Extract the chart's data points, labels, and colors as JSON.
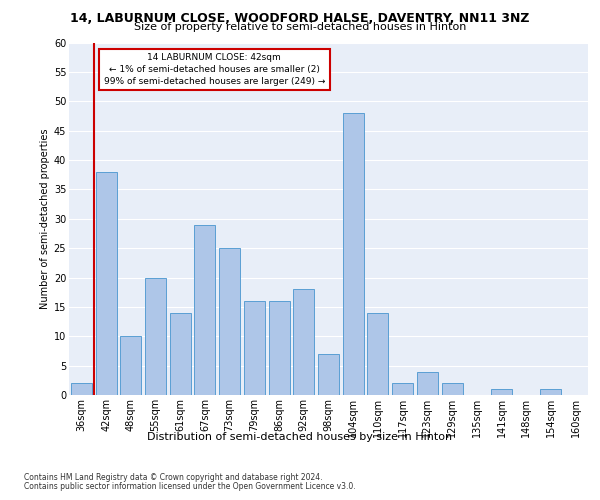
{
  "title": "14, LABURNUM CLOSE, WOODFORD HALSE, DAVENTRY, NN11 3NZ",
  "subtitle": "Size of property relative to semi-detached houses in Hinton",
  "xlabel_bottom": "Distribution of semi-detached houses by size in Hinton",
  "ylabel": "Number of semi-detached properties",
  "categories": [
    "36sqm",
    "42sqm",
    "48sqm",
    "55sqm",
    "61sqm",
    "67sqm",
    "73sqm",
    "79sqm",
    "86sqm",
    "92sqm",
    "98sqm",
    "104sqm",
    "110sqm",
    "117sqm",
    "123sqm",
    "129sqm",
    "135sqm",
    "141sqm",
    "148sqm",
    "154sqm",
    "160sqm"
  ],
  "values": [
    2,
    38,
    10,
    20,
    14,
    29,
    25,
    16,
    16,
    18,
    7,
    48,
    14,
    2,
    4,
    2,
    0,
    1,
    0,
    1,
    0
  ],
  "bar_color": "#aec6e8",
  "bar_edge_color": "#5a9fd4",
  "highlight_line_index": 1,
  "highlight_color": "#cc0000",
  "annotation_title": "14 LABURNUM CLOSE: 42sqm",
  "annotation_line1": "← 1% of semi-detached houses are smaller (2)",
  "annotation_line2": "99% of semi-detached houses are larger (249) →",
  "annotation_box_color": "#cc0000",
  "background_color": "#e8eef8",
  "ylim": [
    0,
    60
  ],
  "yticks": [
    0,
    5,
    10,
    15,
    20,
    25,
    30,
    35,
    40,
    45,
    50,
    55,
    60
  ],
  "footnote1": "Contains HM Land Registry data © Crown copyright and database right 2024.",
  "footnote2": "Contains public sector information licensed under the Open Government Licence v3.0.",
  "title_fontsize": 9,
  "subtitle_fontsize": 8,
  "tick_fontsize": 7,
  "ylabel_fontsize": 7,
  "footnote_fontsize": 5.5
}
